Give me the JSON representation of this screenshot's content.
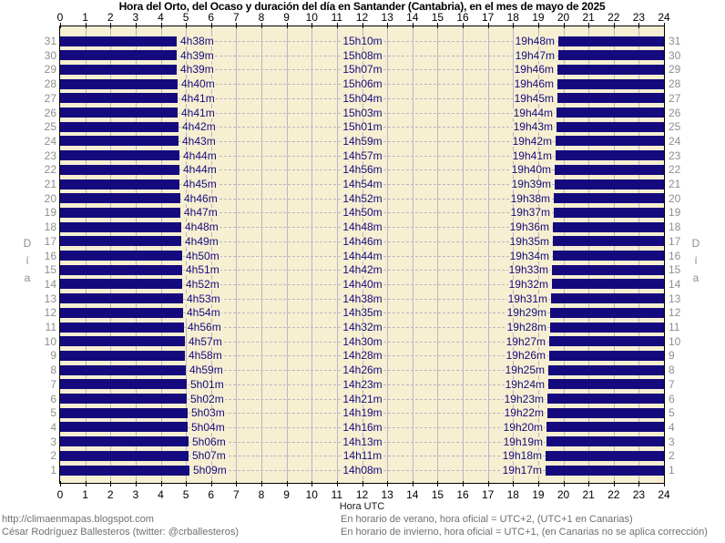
{
  "title": "Hora del Orto, del Ocaso y duración del día en Santander (Cantabria), en el mes de mayo de 2025",
  "axis": {
    "hours": [
      0,
      1,
      2,
      3,
      4,
      5,
      6,
      7,
      8,
      9,
      10,
      11,
      12,
      13,
      14,
      15,
      16,
      17,
      18,
      19,
      20,
      21,
      22,
      23,
      24
    ],
    "xlabel": "Hora UTC",
    "day_label_letters": [
      "D",
      "í",
      "a"
    ]
  },
  "footer": {
    "left": [
      "http://climaenmapas.blogspot.com",
      "César Rodríguez Ballesteros (twitter: @crballesteros)"
    ],
    "right": [
      "En horario de verano, hora oficial = UTC+2, (UTC+1 en Canarias)",
      "En horario de invierno, hora oficial = UTC+1, (en Canarias no se aplica corrección)"
    ]
  },
  "colors": {
    "night_bar": "#140A7D",
    "day_background": "#F7EFD2",
    "grid_line": "#B6B8C4",
    "time_label": "#140A7D",
    "day_number": "#8E8E8E",
    "footer_text": "#6F6F6F",
    "plot_border": "#000000"
  },
  "chart_data": {
    "type": "bar",
    "subtype": "horizontal-day-night-span",
    "title": "Hora del Orto, del Ocaso y duración del día en Santander (Cantabria), en el mes de mayo de 2025",
    "xlabel": "Hora UTC",
    "ylabel": "Día",
    "xlim": [
      0,
      24
    ],
    "grid": true,
    "legend": "none",
    "days": [
      {
        "day": 31,
        "orto": "4h38m",
        "duracion": "15h10m",
        "ocaso": "19h48m"
      },
      {
        "day": 30,
        "orto": "4h39m",
        "duracion": "15h08m",
        "ocaso": "19h47m"
      },
      {
        "day": 29,
        "orto": "4h39m",
        "duracion": "15h07m",
        "ocaso": "19h46m"
      },
      {
        "day": 28,
        "orto": "4h40m",
        "duracion": "15h06m",
        "ocaso": "19h46m"
      },
      {
        "day": 27,
        "orto": "4h41m",
        "duracion": "15h04m",
        "ocaso": "19h45m"
      },
      {
        "day": 26,
        "orto": "4h41m",
        "duracion": "15h03m",
        "ocaso": "19h44m"
      },
      {
        "day": 25,
        "orto": "4h42m",
        "duracion": "15h01m",
        "ocaso": "19h43m"
      },
      {
        "day": 24,
        "orto": "4h43m",
        "duracion": "14h59m",
        "ocaso": "19h42m"
      },
      {
        "day": 23,
        "orto": "4h44m",
        "duracion": "14h57m",
        "ocaso": "19h41m"
      },
      {
        "day": 22,
        "orto": "4h44m",
        "duracion": "14h56m",
        "ocaso": "19h40m"
      },
      {
        "day": 21,
        "orto": "4h45m",
        "duracion": "14h54m",
        "ocaso": "19h39m"
      },
      {
        "day": 20,
        "orto": "4h46m",
        "duracion": "14h52m",
        "ocaso": "19h38m"
      },
      {
        "day": 19,
        "orto": "4h47m",
        "duracion": "14h50m",
        "ocaso": "19h37m"
      },
      {
        "day": 18,
        "orto": "4h48m",
        "duracion": "14h48m",
        "ocaso": "19h36m"
      },
      {
        "day": 17,
        "orto": "4h49m",
        "duracion": "14h46m",
        "ocaso": "19h35m"
      },
      {
        "day": 16,
        "orto": "4h50m",
        "duracion": "14h44m",
        "ocaso": "19h34m"
      },
      {
        "day": 15,
        "orto": "4h51m",
        "duracion": "14h42m",
        "ocaso": "19h33m"
      },
      {
        "day": 14,
        "orto": "4h52m",
        "duracion": "14h40m",
        "ocaso": "19h32m"
      },
      {
        "day": 13,
        "orto": "4h53m",
        "duracion": "14h38m",
        "ocaso": "19h31m"
      },
      {
        "day": 12,
        "orto": "4h54m",
        "duracion": "14h35m",
        "ocaso": "19h29m"
      },
      {
        "day": 11,
        "orto": "4h56m",
        "duracion": "14h32m",
        "ocaso": "19h28m"
      },
      {
        "day": 10,
        "orto": "4h57m",
        "duracion": "14h30m",
        "ocaso": "19h27m"
      },
      {
        "day": 9,
        "orto": "4h58m",
        "duracion": "14h28m",
        "ocaso": "19h26m"
      },
      {
        "day": 8,
        "orto": "4h59m",
        "duracion": "14h26m",
        "ocaso": "19h25m"
      },
      {
        "day": 7,
        "orto": "5h01m",
        "duracion": "14h23m",
        "ocaso": "19h24m"
      },
      {
        "day": 6,
        "orto": "5h02m",
        "duracion": "14h21m",
        "ocaso": "19h23m"
      },
      {
        "day": 5,
        "orto": "5h03m",
        "duracion": "14h19m",
        "ocaso": "19h22m"
      },
      {
        "day": 4,
        "orto": "5h04m",
        "duracion": "14h16m",
        "ocaso": "19h20m"
      },
      {
        "day": 3,
        "orto": "5h06m",
        "duracion": "14h13m",
        "ocaso": "19h19m"
      },
      {
        "day": 2,
        "orto": "5h07m",
        "duracion": "14h11m",
        "ocaso": "19h18m"
      },
      {
        "day": 1,
        "orto": "5h09m",
        "duracion": "14h08m",
        "ocaso": "19h17m"
      }
    ]
  }
}
